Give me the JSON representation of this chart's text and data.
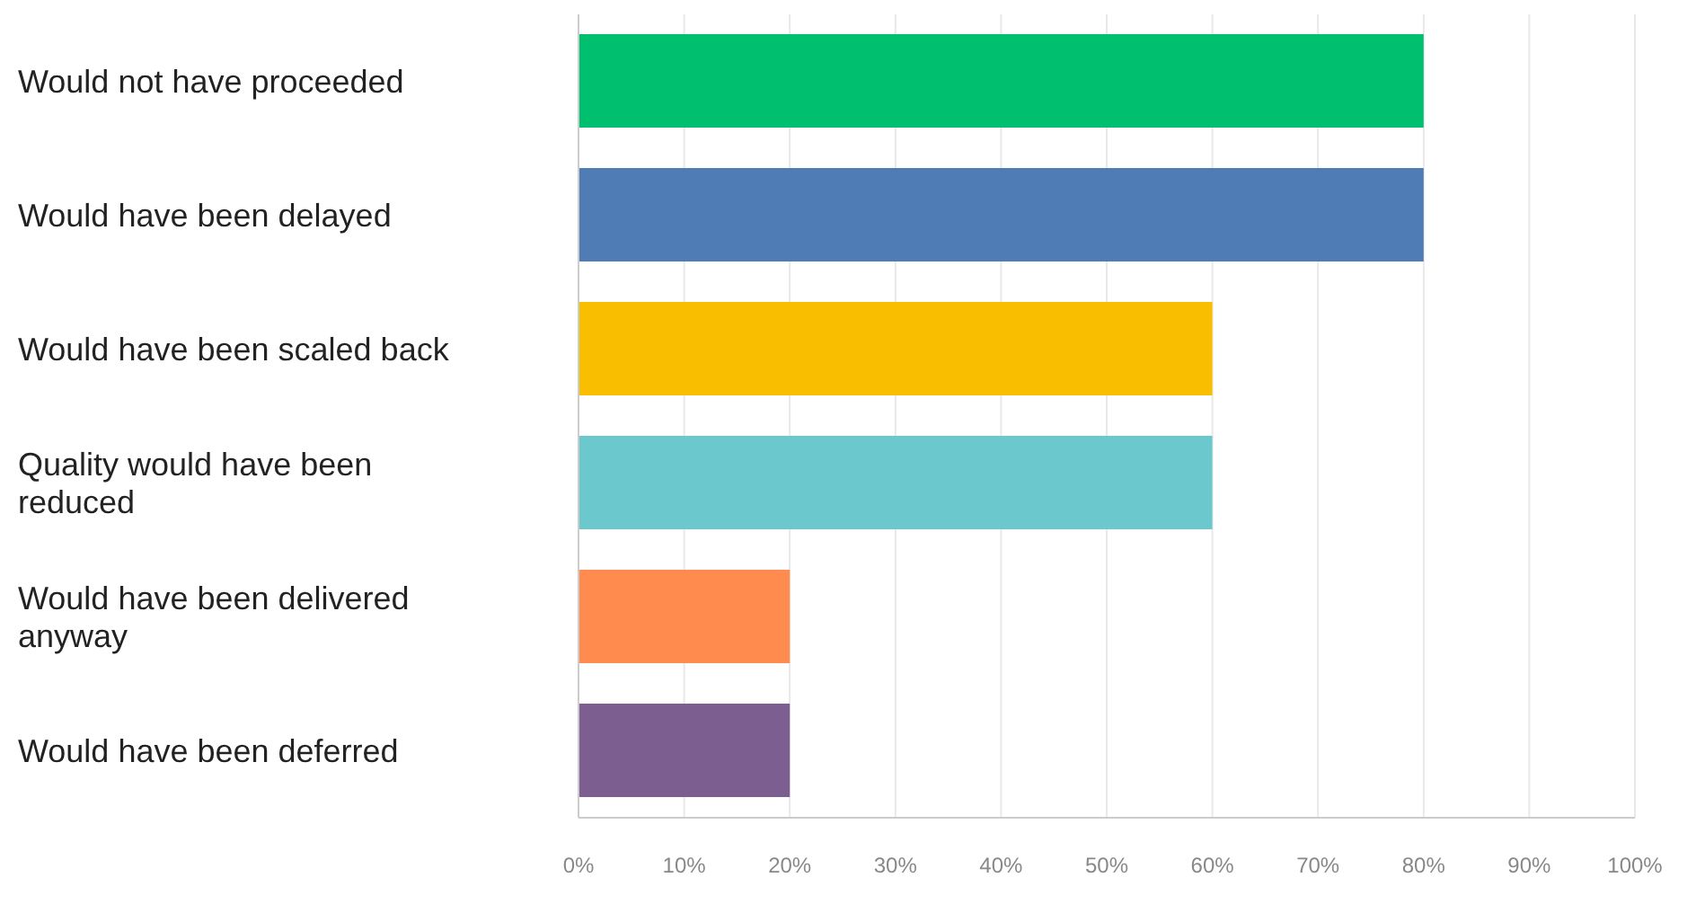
{
  "chart_data": {
    "type": "bar",
    "orientation": "horizontal",
    "categories": [
      "Would not have proceeded",
      "Would have been delayed",
      "Would have been scaled back",
      "Quality would have been reduced",
      "Would have been delivered anyway",
      "Would have been deferred"
    ],
    "values": [
      80,
      80,
      60,
      60,
      20,
      20
    ],
    "colors": [
      "#00bf6f",
      "#507cb6",
      "#f9be00",
      "#6bc8cd",
      "#ff8b4f",
      "#7d5e90"
    ],
    "xlim": [
      0,
      100
    ],
    "xticks": [
      {
        "value": 0,
        "label": "0%"
      },
      {
        "value": 10,
        "label": "10%"
      },
      {
        "value": 20,
        "label": "20%"
      },
      {
        "value": 30,
        "label": "30%"
      },
      {
        "value": 40,
        "label": "40%"
      },
      {
        "value": 50,
        "label": "50%"
      },
      {
        "value": 60,
        "label": "60%"
      },
      {
        "value": 70,
        "label": "70%"
      },
      {
        "value": 80,
        "label": "80%"
      },
      {
        "value": 90,
        "label": "90%"
      },
      {
        "value": 100,
        "label": "100%"
      }
    ],
    "grid": "x",
    "legend": false
  }
}
